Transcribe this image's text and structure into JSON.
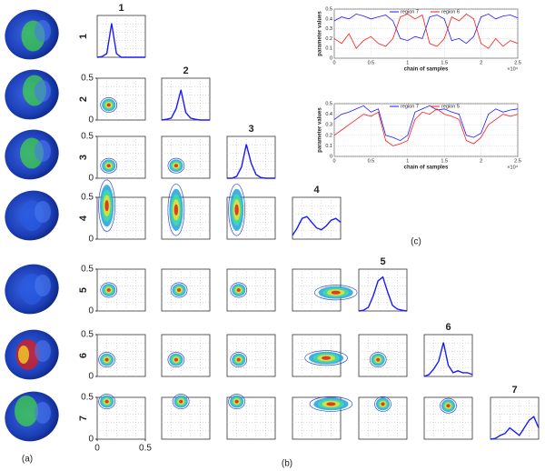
{
  "panel_labels": [
    "(a)",
    "(b)",
    "(c)"
  ],
  "matrix": {
    "labels": [
      "1",
      "2",
      "3",
      "4",
      "5",
      "6",
      "7"
    ],
    "lim": [
      0,
      0.5
    ],
    "ticks": [
      0,
      0.5
    ],
    "density_x": [
      0,
      0.05,
      0.1,
      0.15,
      0.2,
      0.25,
      0.3,
      0.35,
      0.4,
      0.45,
      0.5
    ],
    "densities": [
      [
        0,
        0.02,
        0.1,
        0.9,
        0.1,
        0,
        0,
        0,
        0,
        0,
        0
      ],
      [
        0,
        0.02,
        0.05,
        0.3,
        0.8,
        0.2,
        0.05,
        0.02,
        0,
        0,
        0
      ],
      [
        0,
        0,
        0.05,
        0.3,
        0.9,
        0.4,
        0.1,
        0.02,
        0,
        0,
        0
      ],
      [
        0.1,
        0.3,
        0.55,
        0.6,
        0.45,
        0.3,
        0.25,
        0.35,
        0.5,
        0.55,
        0.45
      ],
      [
        0,
        0.02,
        0.1,
        0.4,
        0.8,
        0.9,
        0.5,
        0.15,
        0.05,
        0.02,
        0
      ],
      [
        0,
        0.05,
        0.2,
        0.4,
        0.9,
        0.3,
        0.1,
        0.15,
        0.1,
        0.1,
        0.05
      ],
      [
        0,
        0.02,
        0.1,
        0.15,
        0.3,
        0.2,
        0.1,
        0.3,
        0.5,
        0.6,
        0.3
      ]
    ],
    "modes": [
      [],
      [
        [
          0.12,
          0.18
        ]
      ],
      [
        [
          0.12,
          0.15
        ],
        [
          0.15,
          0.15
        ]
      ],
      [
        [
          0.1,
          0.4
        ],
        [
          0.15,
          0.35
        ],
        [
          0.1,
          0.35
        ]
      ],
      [
        [
          0.12,
          0.25
        ],
        [
          0.18,
          0.25
        ],
        [
          0.12,
          0.25
        ],
        [
          0.45,
          0.22
        ]
      ],
      [
        [
          0.1,
          0.2
        ],
        [
          0.15,
          0.2
        ],
        [
          0.12,
          0.2
        ],
        [
          0.35,
          0.22
        ],
        [
          0.2,
          0.2
        ]
      ],
      [
        [
          0.1,
          0.45
        ],
        [
          0.2,
          0.45
        ],
        [
          0.1,
          0.45
        ],
        [
          0.4,
          0.42
        ],
        [
          0.25,
          0.42
        ],
        [
          0.25,
          0.4
        ]
      ]
    ]
  },
  "chart_data": [
    {
      "type": "line",
      "xlabel": "chain of samples",
      "ylabel": "parameter values",
      "x_multiplier": "×10⁴",
      "x": [
        0,
        0.1,
        0.2,
        0.3,
        0.4,
        0.5,
        0.6,
        0.7,
        0.8,
        0.9,
        1,
        1.1,
        1.2,
        1.3,
        1.4,
        1.5,
        1.6,
        1.7,
        1.8,
        1.9,
        2,
        2.1,
        2.2,
        2.3,
        2.4,
        2.5
      ],
      "xlim": [
        0,
        2.5
      ],
      "xticks": [
        0,
        0.5,
        1,
        1.5,
        2,
        2.5
      ],
      "ylim": [
        0,
        0.5
      ],
      "yticks": [
        0,
        0.1,
        0.2,
        0.3,
        0.4,
        0.5
      ],
      "grid": true,
      "legend": "top",
      "series": [
        {
          "name": "region 7",
          "color": "#1a1aff",
          "values": [
            0.38,
            0.42,
            0.4,
            0.45,
            0.43,
            0.4,
            0.42,
            0.44,
            0.38,
            0.2,
            0.18,
            0.22,
            0.2,
            0.42,
            0.44,
            0.4,
            0.18,
            0.2,
            0.15,
            0.22,
            0.42,
            0.45,
            0.4,
            0.43,
            0.44,
            0.41
          ]
        },
        {
          "name": "region 6",
          "color": "#ff1a1a",
          "values": [
            0.2,
            0.15,
            0.25,
            0.1,
            0.18,
            0.22,
            0.15,
            0.12,
            0.2,
            0.42,
            0.45,
            0.4,
            0.44,
            0.15,
            0.12,
            0.2,
            0.42,
            0.38,
            0.45,
            0.4,
            0.15,
            0.1,
            0.2,
            0.12,
            0.18,
            0.15
          ]
        }
      ]
    },
    {
      "type": "line",
      "xlabel": "chain of samples",
      "ylabel": "parameter values",
      "x_multiplier": "×10⁴",
      "x": [
        0,
        0.1,
        0.2,
        0.3,
        0.4,
        0.5,
        0.6,
        0.7,
        0.8,
        0.9,
        1,
        1.1,
        1.2,
        1.3,
        1.4,
        1.5,
        1.6,
        1.7,
        1.8,
        1.9,
        2,
        2.1,
        2.2,
        2.3,
        2.4,
        2.5
      ],
      "xlim": [
        0,
        2.5
      ],
      "xticks": [
        0,
        0.5,
        1,
        1.5,
        2,
        2.5
      ],
      "ylim": [
        0,
        0.5
      ],
      "yticks": [
        0,
        0.1,
        0.2,
        0.3,
        0.4,
        0.5
      ],
      "grid": true,
      "legend": "top",
      "series": [
        {
          "name": "region 7",
          "color": "#1a1aff",
          "values": [
            0.35,
            0.4,
            0.42,
            0.45,
            0.48,
            0.42,
            0.45,
            0.2,
            0.18,
            0.15,
            0.2,
            0.42,
            0.45,
            0.48,
            0.44,
            0.45,
            0.42,
            0.4,
            0.2,
            0.18,
            0.22,
            0.4,
            0.45,
            0.42,
            0.44,
            0.45
          ]
        },
        {
          "name": "region 5",
          "color": "#ff1a1a",
          "values": [
            0.2,
            0.25,
            0.3,
            0.35,
            0.4,
            0.38,
            0.42,
            0.15,
            0.1,
            0.12,
            0.15,
            0.35,
            0.42,
            0.4,
            0.45,
            0.4,
            0.38,
            0.35,
            0.15,
            0.12,
            0.18,
            0.3,
            0.35,
            0.4,
            0.38,
            0.4
          ]
        }
      ]
    }
  ]
}
